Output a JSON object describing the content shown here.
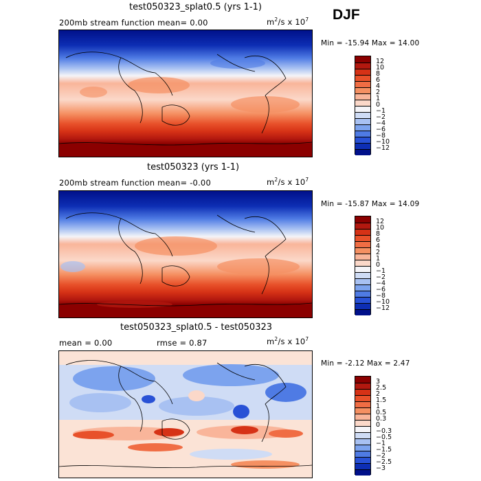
{
  "season": "DJF",
  "panels": [
    {
      "title": "test050323_splat0.5 (yrs 1-1)",
      "subtitle_left": "200mb stream function  mean=   0.00",
      "units_base": "m",
      "units_sup1": "2",
      "units_mid": "/s x 10",
      "units_sup2": "7",
      "minmax": "Min = -15.94 Max =   14.00",
      "colorbar": {
        "labels": [
          "12",
          "10",
          "8",
          "6",
          "4",
          "2",
          "1",
          "0",
          "−1",
          "−2",
          "−4",
          "−6",
          "−8",
          "−10",
          "−12"
        ],
        "colors": [
          "#8b0000",
          "#b2180f",
          "#d63216",
          "#e8512a",
          "#f06d44",
          "#f59062",
          "#f9b59a",
          "#fbd8c9",
          "#f4f4f8",
          "#cfdcf5",
          "#a8c1f2",
          "#7ca3ee",
          "#4f7be4",
          "#2851d6",
          "#0d2eb4",
          "#00108a"
        ]
      }
    },
    {
      "title": "test050323 (yrs 1-1)",
      "subtitle_left": "200mb stream function  mean=  -0.00",
      "units_base": "m",
      "units_sup1": "2",
      "units_mid": "/s x 10",
      "units_sup2": "7",
      "minmax": "Min = -15.87 Max =   14.09",
      "colorbar": {
        "labels": [
          "12",
          "10",
          "8",
          "6",
          "4",
          "2",
          "1",
          "0",
          "−1",
          "−2",
          "−4",
          "−6",
          "−8",
          "−10",
          "−12"
        ],
        "colors": [
          "#8b0000",
          "#b2180f",
          "#d63216",
          "#e8512a",
          "#f06d44",
          "#f59062",
          "#f9b59a",
          "#fbd8c9",
          "#f4f4f8",
          "#cfdcf5",
          "#a8c1f2",
          "#7ca3ee",
          "#4f7be4",
          "#2851d6",
          "#0d2eb4",
          "#00108a"
        ]
      }
    },
    {
      "title": "test050323_splat0.5 - test050323",
      "subtitle_mean": "mean =   0.00",
      "subtitle_rmse": "rmse =   0.87",
      "units_base": "m",
      "units_sup1": "2",
      "units_mid": "/s x 10",
      "units_sup2": "7",
      "minmax": "Min =  -2.12 Max =    2.47",
      "colorbar": {
        "labels": [
          "3",
          "2.5",
          "2",
          "1.5",
          "1",
          "0.5",
          "0.3",
          "0",
          "−0.3",
          "−0.5",
          "−1",
          "−1.5",
          "−2",
          "−2.5",
          "−3"
        ],
        "colors": [
          "#8b0000",
          "#b2180f",
          "#d63216",
          "#e8512a",
          "#f06d44",
          "#f59062",
          "#f9b59a",
          "#fbd8c9",
          "#f4f4f8",
          "#cfdcf5",
          "#a8c1f2",
          "#7ca3ee",
          "#4f7be4",
          "#2851d6",
          "#0d2eb4",
          "#00108a"
        ]
      }
    }
  ]
}
